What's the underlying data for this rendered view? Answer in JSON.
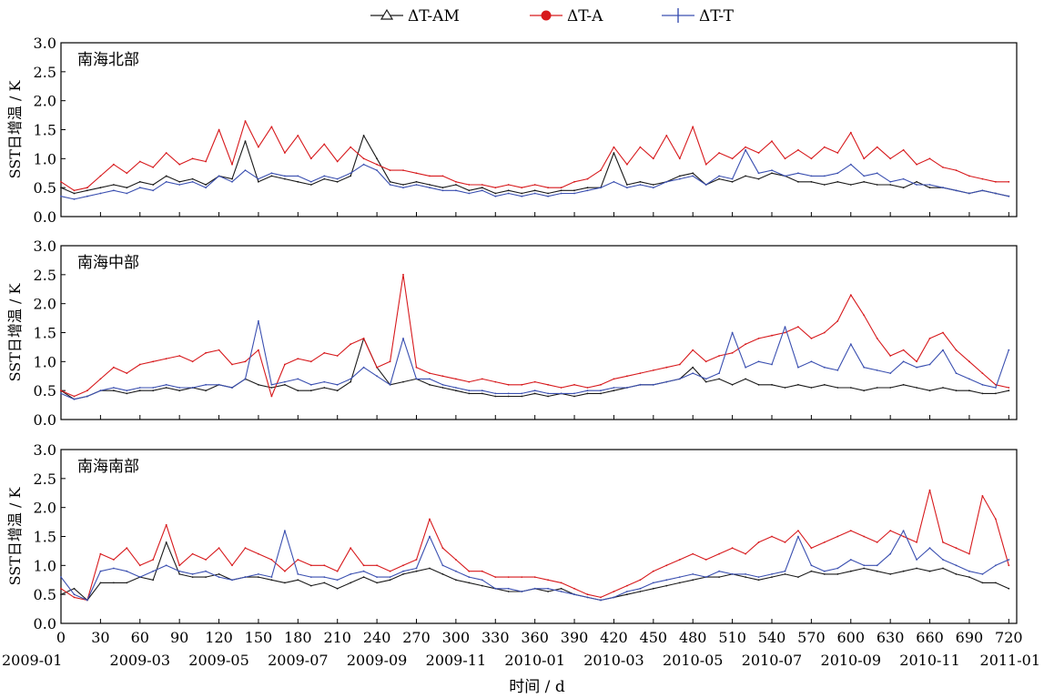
{
  "legend": {
    "items": [
      {
        "label_prefix": "ΔT-",
        "label_suffix": "AM",
        "color": "#1a1a1a",
        "marker": "triangle-icon"
      },
      {
        "label_prefix": "ΔT-",
        "label_suffix": "A",
        "color": "#d7191c",
        "marker": "circle-icon"
      },
      {
        "label_prefix": "ΔT-",
        "label_suffix": "T",
        "color": "#3a4fb0",
        "marker": "plus-icon"
      }
    ]
  },
  "xlabel": "时间 / d",
  "ylabel": "SST日增温 / K",
  "x_ticks": [
    0,
    30,
    60,
    90,
    120,
    150,
    180,
    210,
    240,
    270,
    300,
    330,
    360,
    390,
    420,
    450,
    480,
    510,
    540,
    570,
    600,
    630,
    660,
    690,
    720
  ],
  "date_ticks": [
    {
      "day": 0,
      "label": "2009-01"
    },
    {
      "day": 60,
      "label": "2009-03"
    },
    {
      "day": 120,
      "label": "2009-05"
    },
    {
      "day": 180,
      "label": "2009-07"
    },
    {
      "day": 240,
      "label": "2009-09"
    },
    {
      "day": 300,
      "label": "2009-11"
    },
    {
      "day": 360,
      "label": "2010-01"
    },
    {
      "day": 420,
      "label": "2010-03"
    },
    {
      "day": 480,
      "label": "2010-05"
    },
    {
      "day": 540,
      "label": "2010-07"
    },
    {
      "day": 600,
      "label": "2010-09"
    },
    {
      "day": 660,
      "label": "2010-11"
    },
    {
      "day": 720,
      "label": "2011-01"
    }
  ],
  "y_ticks": [
    "0.0",
    "0.5",
    "1.0",
    "1.5",
    "2.0",
    "2.5",
    "3.0"
  ],
  "chart_data": [
    {
      "type": "line",
      "title": "南海北部",
      "xlim": [
        0,
        726
      ],
      "ylim": [
        0,
        3.0
      ],
      "x": [
        0,
        10,
        20,
        30,
        40,
        50,
        60,
        70,
        80,
        90,
        100,
        110,
        120,
        130,
        140,
        150,
        160,
        170,
        180,
        190,
        200,
        210,
        220,
        230,
        240,
        250,
        260,
        270,
        280,
        290,
        300,
        310,
        320,
        330,
        340,
        350,
        360,
        370,
        380,
        390,
        400,
        410,
        420,
        430,
        440,
        450,
        460,
        470,
        480,
        490,
        500,
        510,
        520,
        530,
        540,
        550,
        560,
        570,
        580,
        590,
        600,
        610,
        620,
        630,
        640,
        650,
        660,
        670,
        680,
        690,
        700,
        710,
        720
      ],
      "series": [
        {
          "name": "ΔT-AM",
          "color": "#1a1a1a",
          "values": [
            0.5,
            0.4,
            0.45,
            0.5,
            0.55,
            0.5,
            0.6,
            0.55,
            0.7,
            0.6,
            0.65,
            0.55,
            0.7,
            0.65,
            1.3,
            0.6,
            0.7,
            0.65,
            0.6,
            0.55,
            0.65,
            0.6,
            0.7,
            1.4,
            1.0,
            0.6,
            0.55,
            0.6,
            0.55,
            0.5,
            0.55,
            0.45,
            0.5,
            0.4,
            0.45,
            0.4,
            0.45,
            0.4,
            0.45,
            0.45,
            0.5,
            0.5,
            1.1,
            0.55,
            0.6,
            0.55,
            0.6,
            0.7,
            0.75,
            0.55,
            0.65,
            0.6,
            0.7,
            0.65,
            0.75,
            0.7,
            0.6,
            0.6,
            0.55,
            0.6,
            0.55,
            0.6,
            0.55,
            0.55,
            0.5,
            0.6,
            0.5,
            0.5,
            0.45,
            0.4,
            0.45,
            0.4,
            0.35
          ]
        },
        {
          "name": "ΔT-A",
          "color": "#d7191c",
          "values": [
            0.6,
            0.45,
            0.5,
            0.7,
            0.9,
            0.75,
            0.95,
            0.85,
            1.1,
            0.9,
            1.0,
            0.95,
            1.5,
            0.9,
            1.65,
            1.2,
            1.55,
            1.1,
            1.4,
            1.0,
            1.25,
            0.95,
            1.2,
            1.0,
            0.9,
            0.8,
            0.8,
            0.75,
            0.7,
            0.7,
            0.6,
            0.55,
            0.55,
            0.5,
            0.55,
            0.5,
            0.55,
            0.5,
            0.5,
            0.6,
            0.65,
            0.8,
            1.2,
            0.9,
            1.2,
            1.0,
            1.4,
            1.0,
            1.55,
            0.9,
            1.1,
            1.0,
            1.2,
            1.1,
            1.3,
            1.0,
            1.15,
            1.0,
            1.2,
            1.1,
            1.45,
            1.0,
            1.2,
            1.0,
            1.15,
            0.9,
            1.0,
            0.85,
            0.8,
            0.7,
            0.65,
            0.6,
            0.6
          ]
        },
        {
          "name": "ΔT-T",
          "color": "#3a4fb0",
          "values": [
            0.35,
            0.3,
            0.35,
            0.4,
            0.45,
            0.4,
            0.5,
            0.45,
            0.6,
            0.55,
            0.6,
            0.5,
            0.7,
            0.6,
            0.8,
            0.65,
            0.75,
            0.7,
            0.7,
            0.6,
            0.7,
            0.65,
            0.75,
            0.9,
            0.8,
            0.55,
            0.5,
            0.55,
            0.5,
            0.45,
            0.45,
            0.4,
            0.45,
            0.35,
            0.4,
            0.35,
            0.4,
            0.35,
            0.4,
            0.4,
            0.45,
            0.5,
            0.6,
            0.5,
            0.55,
            0.5,
            0.6,
            0.65,
            0.7,
            0.55,
            0.7,
            0.65,
            1.15,
            0.75,
            0.8,
            0.7,
            0.75,
            0.7,
            0.7,
            0.75,
            0.9,
            0.7,
            0.75,
            0.6,
            0.65,
            0.55,
            0.55,
            0.5,
            0.45,
            0.4,
            0.45,
            0.4,
            0.35
          ]
        }
      ]
    },
    {
      "type": "line",
      "title": "南海中部",
      "xlim": [
        0,
        726
      ],
      "ylim": [
        0,
        3.0
      ],
      "x": [
        0,
        10,
        20,
        30,
        40,
        50,
        60,
        70,
        80,
        90,
        100,
        110,
        120,
        130,
        140,
        150,
        160,
        170,
        180,
        190,
        200,
        210,
        220,
        230,
        240,
        250,
        260,
        270,
        280,
        290,
        300,
        310,
        320,
        330,
        340,
        350,
        360,
        370,
        380,
        390,
        400,
        410,
        420,
        430,
        440,
        450,
        460,
        470,
        480,
        490,
        500,
        510,
        520,
        530,
        540,
        550,
        560,
        570,
        580,
        590,
        600,
        610,
        620,
        630,
        640,
        650,
        660,
        670,
        680,
        690,
        700,
        710,
        720
      ],
      "series": [
        {
          "name": "ΔT-AM",
          "color": "#1a1a1a",
          "values": [
            0.5,
            0.35,
            0.4,
            0.5,
            0.5,
            0.45,
            0.5,
            0.5,
            0.55,
            0.5,
            0.55,
            0.5,
            0.6,
            0.55,
            0.7,
            0.6,
            0.55,
            0.6,
            0.5,
            0.5,
            0.55,
            0.5,
            0.65,
            1.4,
            0.9,
            0.6,
            0.65,
            0.7,
            0.6,
            0.55,
            0.5,
            0.45,
            0.45,
            0.4,
            0.4,
            0.4,
            0.45,
            0.4,
            0.45,
            0.4,
            0.45,
            0.45,
            0.5,
            0.55,
            0.6,
            0.6,
            0.65,
            0.7,
            0.9,
            0.65,
            0.7,
            0.6,
            0.7,
            0.6,
            0.6,
            0.55,
            0.6,
            0.55,
            0.6,
            0.55,
            0.55,
            0.5,
            0.55,
            0.55,
            0.6,
            0.55,
            0.5,
            0.55,
            0.5,
            0.5,
            0.45,
            0.45,
            0.5
          ]
        },
        {
          "name": "ΔT-A",
          "color": "#d7191c",
          "values": [
            0.5,
            0.4,
            0.5,
            0.7,
            0.9,
            0.8,
            0.95,
            1.0,
            1.05,
            1.1,
            1.0,
            1.15,
            1.2,
            0.95,
            1.0,
            1.2,
            0.4,
            0.95,
            1.05,
            1.0,
            1.15,
            1.1,
            1.3,
            1.4,
            0.9,
            1.0,
            2.5,
            0.9,
            0.8,
            0.75,
            0.7,
            0.65,
            0.7,
            0.65,
            0.6,
            0.6,
            0.65,
            0.6,
            0.55,
            0.6,
            0.55,
            0.6,
            0.7,
            0.75,
            0.8,
            0.85,
            0.9,
            0.95,
            1.2,
            1.0,
            1.1,
            1.15,
            1.3,
            1.4,
            1.45,
            1.5,
            1.6,
            1.4,
            1.5,
            1.7,
            2.15,
            1.8,
            1.4,
            1.1,
            1.2,
            1.0,
            1.4,
            1.5,
            1.2,
            1.0,
            0.8,
            0.6,
            0.55
          ]
        },
        {
          "name": "ΔT-T",
          "color": "#3a4fb0",
          "values": [
            0.45,
            0.35,
            0.4,
            0.5,
            0.55,
            0.5,
            0.55,
            0.55,
            0.6,
            0.55,
            0.55,
            0.6,
            0.6,
            0.55,
            0.7,
            1.7,
            0.6,
            0.65,
            0.7,
            0.6,
            0.65,
            0.6,
            0.7,
            0.9,
            0.75,
            0.6,
            1.4,
            0.7,
            0.7,
            0.6,
            0.55,
            0.5,
            0.5,
            0.45,
            0.45,
            0.45,
            0.5,
            0.45,
            0.45,
            0.45,
            0.5,
            0.5,
            0.55,
            0.55,
            0.6,
            0.6,
            0.65,
            0.7,
            0.8,
            0.7,
            0.8,
            1.5,
            0.9,
            1.0,
            0.95,
            1.6,
            0.9,
            1.0,
            0.9,
            0.85,
            1.3,
            0.9,
            0.85,
            0.8,
            1.0,
            0.9,
            0.95,
            1.2,
            0.8,
            0.7,
            0.6,
            0.55,
            1.2
          ]
        }
      ]
    },
    {
      "type": "line",
      "title": "南海南部",
      "xlim": [
        0,
        726
      ],
      "ylim": [
        0,
        3.0
      ],
      "x": [
        0,
        10,
        20,
        30,
        40,
        50,
        60,
        70,
        80,
        90,
        100,
        110,
        120,
        130,
        140,
        150,
        160,
        170,
        180,
        190,
        200,
        210,
        220,
        230,
        240,
        250,
        260,
        270,
        280,
        290,
        300,
        310,
        320,
        330,
        340,
        350,
        360,
        370,
        380,
        390,
        400,
        410,
        420,
        430,
        440,
        450,
        460,
        470,
        480,
        490,
        500,
        510,
        520,
        530,
        540,
        550,
        560,
        570,
        580,
        590,
        600,
        610,
        620,
        630,
        640,
        650,
        660,
        670,
        680,
        690,
        700,
        710,
        720
      ],
      "series": [
        {
          "name": "ΔT-AM",
          "color": "#1a1a1a",
          "values": [
            0.5,
            0.6,
            0.4,
            0.7,
            0.7,
            0.7,
            0.8,
            0.75,
            1.4,
            0.85,
            0.8,
            0.8,
            0.85,
            0.75,
            0.8,
            0.8,
            0.75,
            0.7,
            0.75,
            0.65,
            0.7,
            0.6,
            0.7,
            0.8,
            0.7,
            0.75,
            0.85,
            0.9,
            0.95,
            0.85,
            0.75,
            0.7,
            0.65,
            0.6,
            0.55,
            0.55,
            0.6,
            0.55,
            0.6,
            0.5,
            0.45,
            0.4,
            0.45,
            0.5,
            0.55,
            0.6,
            0.65,
            0.7,
            0.75,
            0.8,
            0.8,
            0.85,
            0.8,
            0.75,
            0.8,
            0.85,
            0.8,
            0.9,
            0.85,
            0.85,
            0.9,
            0.95,
            0.9,
            0.85,
            0.9,
            0.95,
            0.9,
            0.95,
            0.85,
            0.8,
            0.7,
            0.7,
            0.6
          ]
        },
        {
          "name": "ΔT-A",
          "color": "#d7191c",
          "values": [
            0.6,
            0.45,
            0.4,
            1.2,
            1.1,
            1.3,
            1.0,
            1.1,
            1.7,
            1.0,
            1.2,
            1.1,
            1.3,
            1.0,
            1.3,
            1.2,
            1.1,
            0.9,
            1.1,
            1.0,
            1.0,
            0.9,
            1.3,
            1.0,
            1.0,
            0.9,
            1.0,
            1.1,
            1.8,
            1.3,
            1.1,
            0.9,
            0.9,
            0.8,
            0.8,
            0.8,
            0.8,
            0.75,
            0.7,
            0.6,
            0.5,
            0.45,
            0.55,
            0.65,
            0.75,
            0.9,
            1.0,
            1.1,
            1.2,
            1.1,
            1.2,
            1.3,
            1.2,
            1.4,
            1.5,
            1.4,
            1.6,
            1.3,
            1.4,
            1.5,
            1.6,
            1.5,
            1.4,
            1.6,
            1.5,
            1.4,
            2.3,
            1.4,
            1.3,
            1.2,
            2.2,
            1.8,
            1.0
          ]
        },
        {
          "name": "ΔT-T",
          "color": "#3a4fb0",
          "values": [
            0.8,
            0.5,
            0.4,
            0.9,
            0.95,
            0.9,
            0.8,
            0.9,
            1.0,
            0.9,
            0.85,
            0.9,
            0.8,
            0.75,
            0.8,
            0.85,
            0.8,
            1.6,
            0.85,
            0.8,
            0.8,
            0.75,
            0.85,
            0.9,
            0.8,
            0.8,
            0.9,
            0.95,
            1.5,
            1.0,
            0.9,
            0.8,
            0.75,
            0.6,
            0.6,
            0.55,
            0.6,
            0.6,
            0.55,
            0.5,
            0.45,
            0.4,
            0.45,
            0.55,
            0.6,
            0.7,
            0.75,
            0.8,
            0.85,
            0.8,
            0.9,
            0.85,
            0.85,
            0.8,
            0.85,
            0.9,
            1.5,
            1.0,
            0.9,
            0.95,
            1.1,
            1.0,
            1.0,
            1.2,
            1.6,
            1.1,
            1.3,
            1.1,
            1.0,
            0.9,
            0.85,
            1.0,
            1.1
          ]
        }
      ]
    }
  ]
}
